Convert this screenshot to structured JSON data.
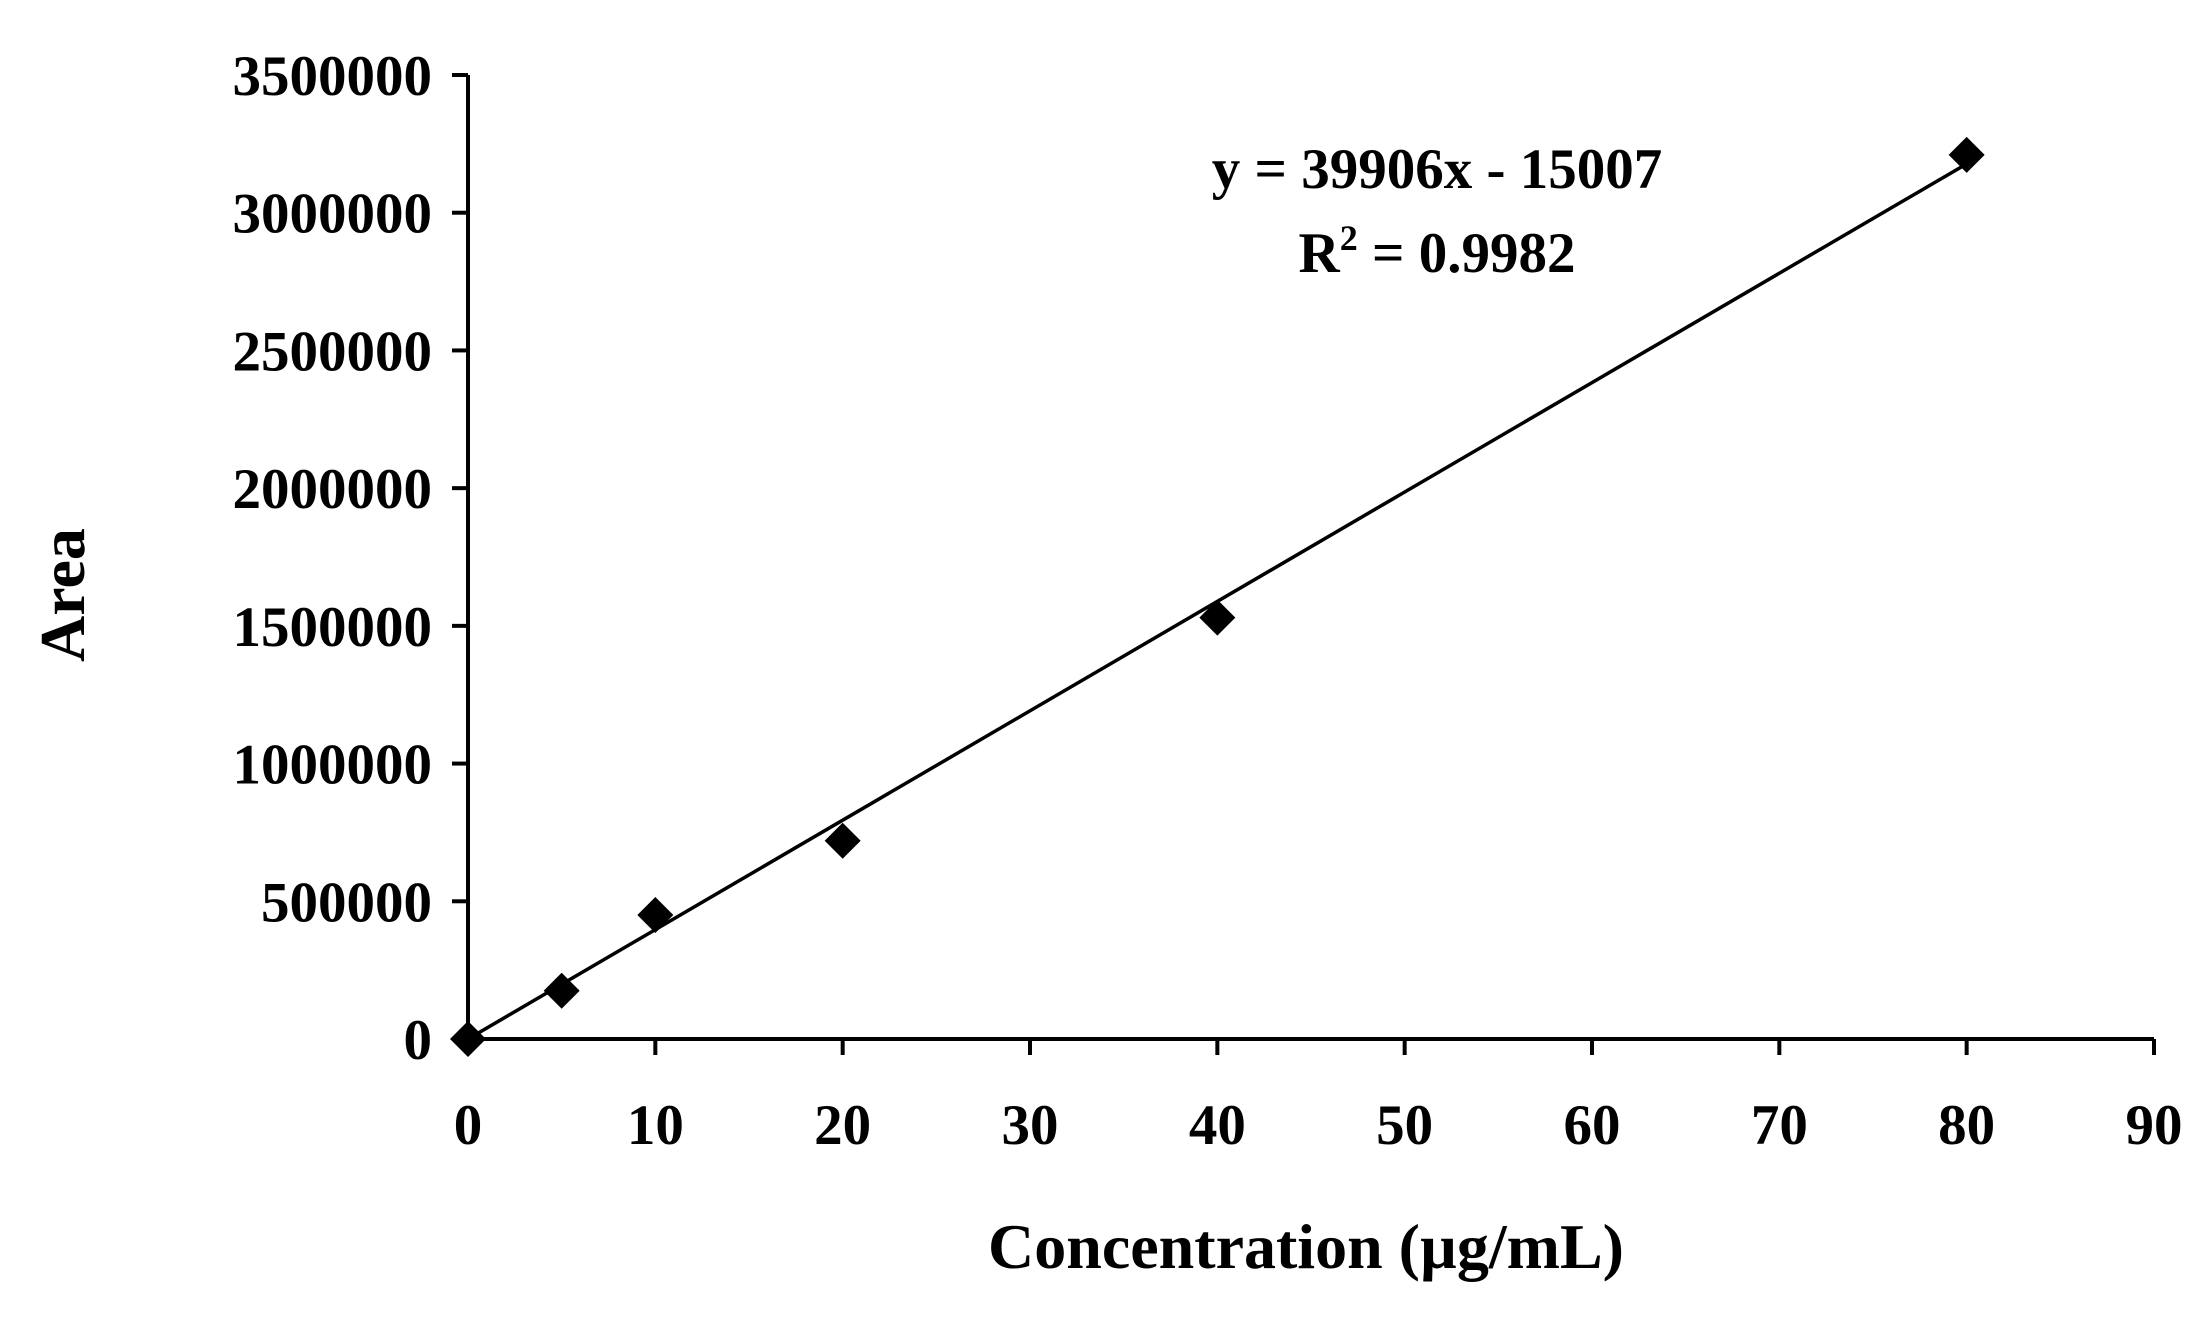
{
  "chart_data": {
    "type": "scatter",
    "title": "",
    "xlabel": "Concentration (µg/mL)",
    "ylabel": "Area",
    "xlim": [
      0,
      90
    ],
    "ylim": [
      0,
      3500000
    ],
    "x_ticks": [
      0,
      10,
      20,
      30,
      40,
      50,
      60,
      70,
      80,
      90
    ],
    "y_ticks": [
      0,
      500000,
      1000000,
      1500000,
      2000000,
      2500000,
      3000000,
      3500000
    ],
    "grid": false,
    "legend": "none",
    "marker": "diamond",
    "marker_color": "#000000",
    "series": [
      {
        "x": [
          0,
          5,
          10,
          20,
          40,
          80
        ],
        "y": [
          0,
          175000,
          450000,
          720000,
          1530000,
          3210000
        ]
      }
    ],
    "trendline": {
      "slope": 39906,
      "intercept": -15007,
      "x_range": [
        0,
        80
      ],
      "equation_label": "y = 39906x - 15007",
      "r2_prefix": "R",
      "r2_superscript": "2",
      "r2_value": " = 0.9982"
    }
  }
}
